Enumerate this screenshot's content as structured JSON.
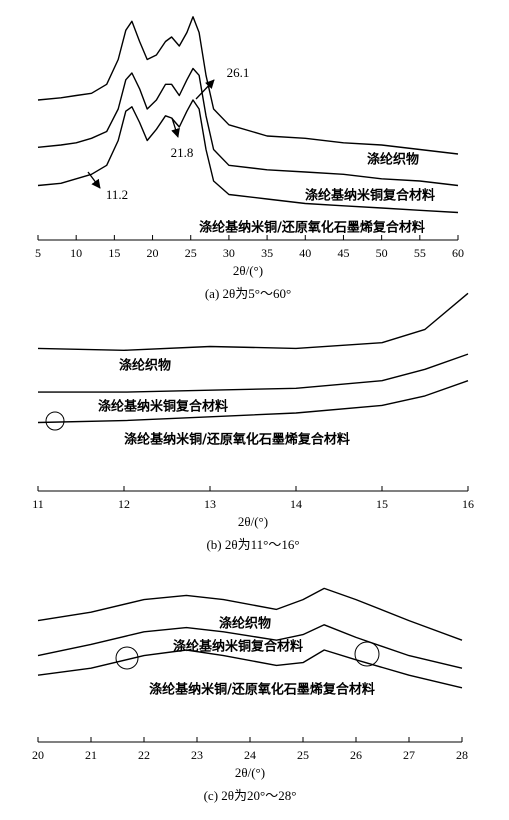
{
  "chart_data": [
    {
      "type": "line",
      "caption": "(a) 2θ为5°～60°",
      "x_label": "2θ/(°)",
      "x": [
        5,
        8,
        10,
        12,
        14,
        15.5,
        16.5,
        17.3,
        18.3,
        19.3,
        20.5,
        21.7,
        22.5,
        23.5,
        24.5,
        25.3,
        26.1,
        27,
        28,
        30,
        35,
        40,
        45,
        50,
        55,
        60
      ],
      "series": [
        {
          "name": "涤纶织物",
          "color": "#000000",
          "values": [
            60,
            61,
            62,
            63,
            67,
            78,
            91,
            95,
            86,
            78,
            80,
            86,
            88,
            84,
            90,
            97,
            90,
            71,
            56,
            49,
            44,
            43,
            41,
            40,
            38,
            36
          ]
        },
        {
          "name": "涤纶基纳米铜复合材料",
          "color": "#000000",
          "values": [
            39,
            40,
            41,
            43,
            46,
            56,
            69,
            72,
            65,
            56,
            60,
            67,
            67,
            62,
            69,
            74,
            71,
            53,
            38,
            31,
            29,
            28,
            27,
            25,
            24,
            22
          ]
        },
        {
          "name": "涤纶基纳米铜/还原氧化石墨烯复合材料",
          "color": "#000000",
          "values": [
            22,
            23,
            25,
            27,
            31,
            42,
            55,
            57,
            50,
            42,
            47,
            53,
            52,
            48,
            55,
            60,
            56,
            38,
            24,
            18,
            16,
            14,
            13,
            12,
            11,
            10
          ]
        }
      ],
      "annotations": [
        "26.1",
        "21.8",
        "11.2"
      ],
      "xlim": [
        5,
        60
      ],
      "xticks": [
        5,
        10,
        15,
        20,
        25,
        30,
        35,
        40,
        45,
        50,
        55,
        60
      ],
      "ylim": [
        0,
        100
      ]
    },
    {
      "type": "line",
      "caption": "(b) 2θ为11°～16°",
      "x_label": "2θ/(°)",
      "x": [
        11,
        12,
        13,
        14,
        15,
        15.5,
        16
      ],
      "series": [
        {
          "name": "涤纶织物",
          "color": "#000000",
          "values": [
            64,
            63,
            65,
            64,
            67,
            74,
            93
          ]
        },
        {
          "name": "涤纶基纳米铜复合材料",
          "color": "#000000",
          "values": [
            41,
            41,
            42,
            43,
            47,
            53,
            61
          ]
        },
        {
          "name": "涤纶基纳米铜/还原氧化石墨烯复合材料",
          "color": "#000000",
          "values": [
            25,
            26,
            28,
            30,
            34,
            39,
            47
          ]
        }
      ],
      "xlim": [
        11,
        16
      ],
      "xticks": [
        11,
        12,
        13,
        14,
        15,
        16
      ],
      "ylim": [
        0,
        100
      ]
    },
    {
      "type": "line",
      "caption": "(c) 2θ为20°～28°",
      "x_label": "2θ/(°)",
      "x": [
        20,
        21,
        22,
        22.8,
        23.5,
        24.5,
        25,
        25.4,
        26,
        27,
        28
      ],
      "series": [
        {
          "name": "涤纶织物",
          "color": "#000000",
          "values": [
            71,
            77,
            86,
            89,
            86,
            79,
            86,
            94,
            86,
            71,
            57
          ]
        },
        {
          "name": "涤纶基纳米铜复合材料",
          "color": "#000000",
          "values": [
            46,
            54,
            63,
            66,
            63,
            57,
            61,
            68,
            59,
            46,
            37
          ]
        },
        {
          "name": "涤纶基纳米铜/还原氧化石墨烯复合材料",
          "color": "#000000",
          "values": [
            32,
            37,
            46,
            50,
            46,
            39,
            41,
            50,
            43,
            32,
            23
          ]
        }
      ],
      "xlim": [
        20,
        28
      ],
      "xticks": [
        20,
        21,
        22,
        23,
        24,
        25,
        26,
        27,
        28
      ],
      "ylim": [
        0,
        100
      ]
    }
  ]
}
